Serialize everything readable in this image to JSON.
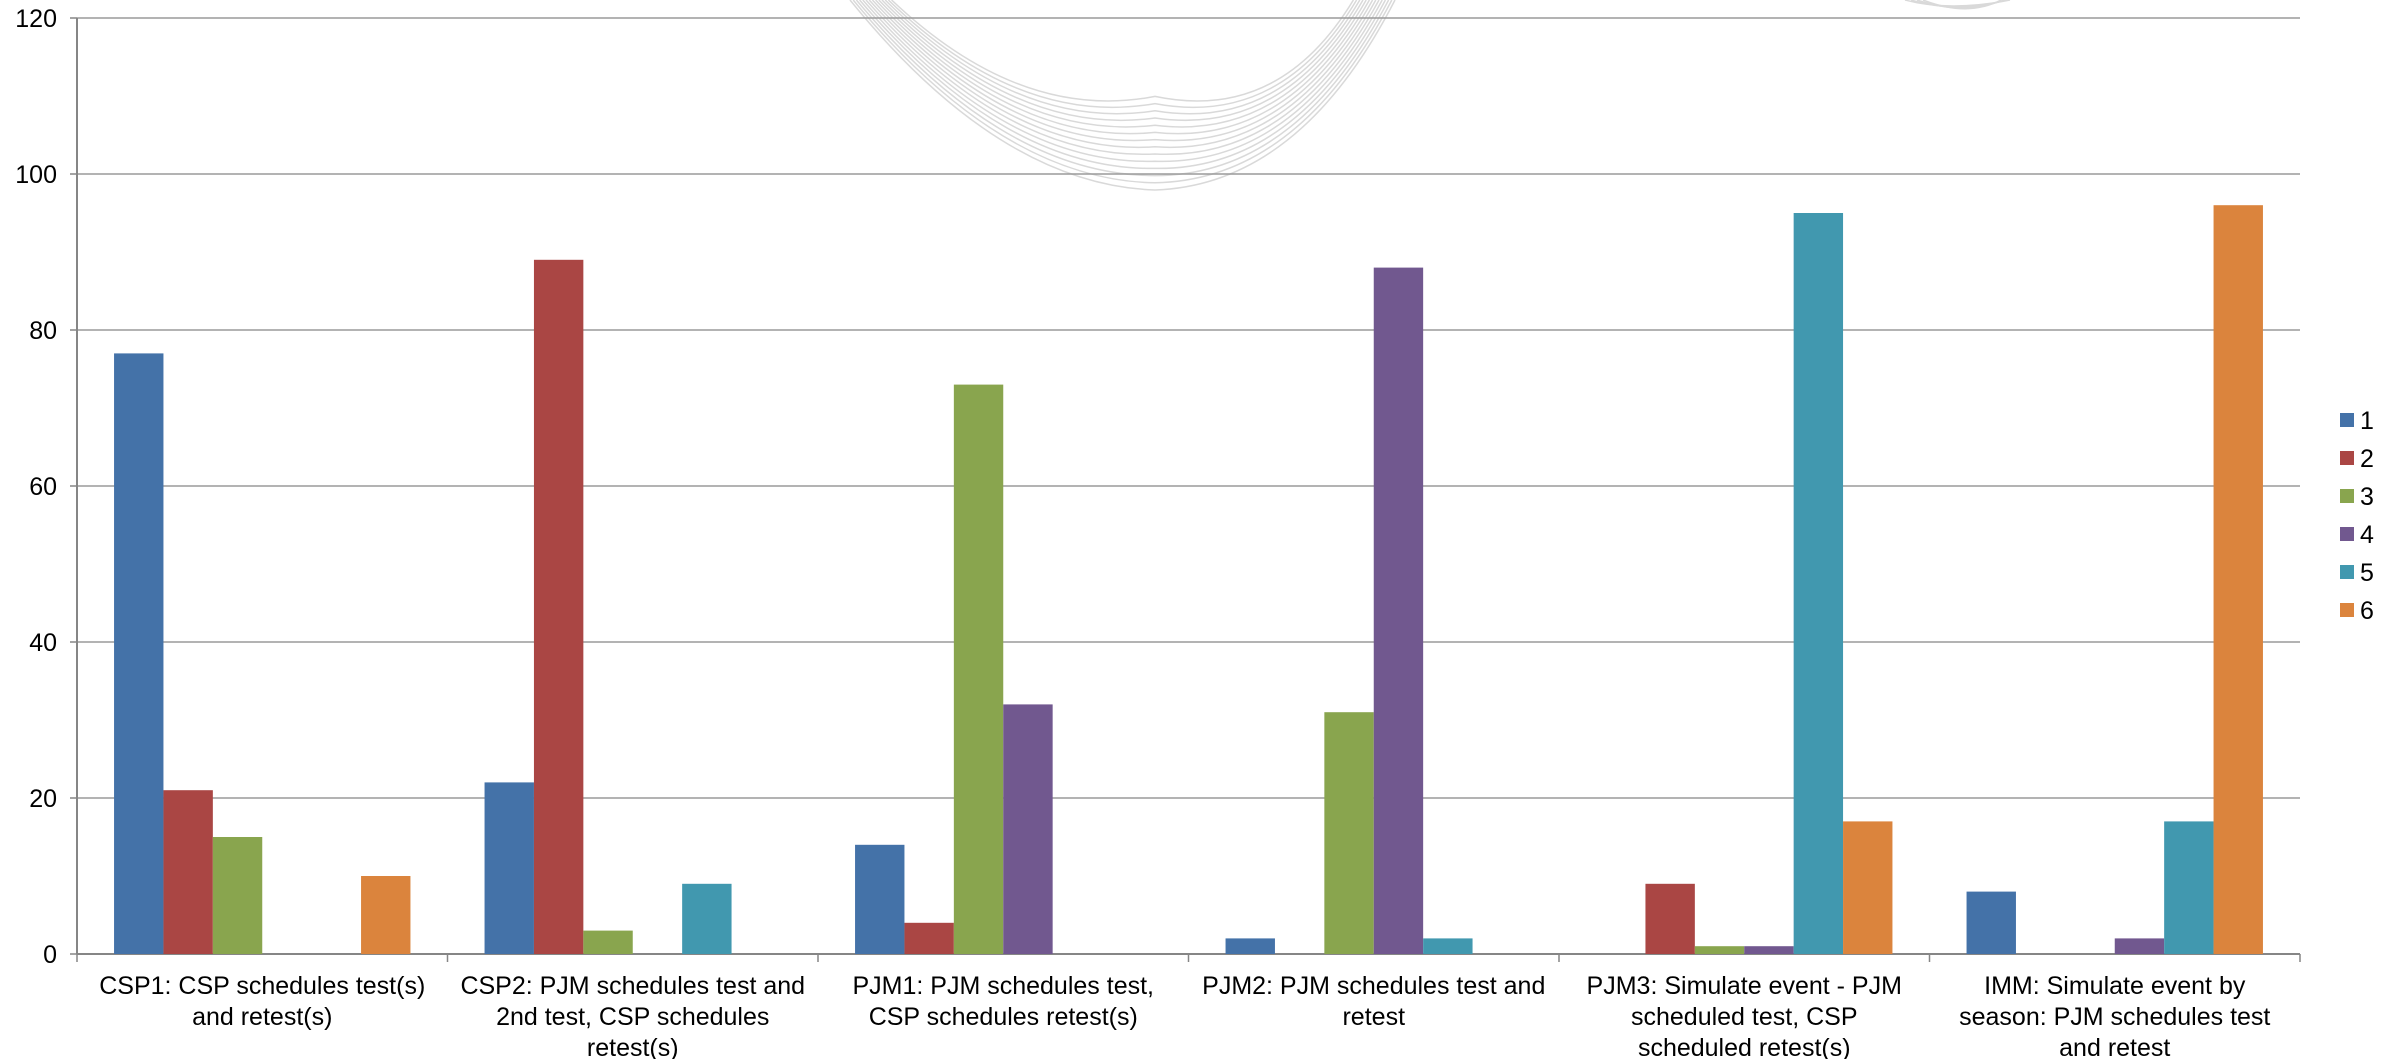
{
  "chart_data": {
    "type": "bar",
    "categories": [
      [
        "CSP1: CSP schedules test(s)",
        "and retest(s)"
      ],
      [
        "CSP2: PJM schedules test and",
        "2nd test, CSP schedules",
        "retest(s)"
      ],
      [
        "PJM1: PJM schedules test,",
        "CSP schedules retest(s)"
      ],
      [
        "PJM2: PJM schedules test and",
        "retest"
      ],
      [
        "PJM3: Simulate event - PJM",
        "scheduled test, CSP",
        "scheduled retest(s)"
      ],
      [
        "IMM: Simulate event by",
        "season: PJM schedules test",
        "and retest"
      ]
    ],
    "series": [
      {
        "name": "1",
        "color": "#4472a8",
        "values": [
          77,
          22,
          14,
          2,
          0,
          8
        ]
      },
      {
        "name": "2",
        "color": "#aa4644",
        "values": [
          21,
          89,
          4,
          0,
          9,
          0
        ]
      },
      {
        "name": "3",
        "color": "#89a54e",
        "values": [
          15,
          3,
          73,
          31,
          1,
          0
        ]
      },
      {
        "name": "4",
        "color": "#71588f",
        "values": [
          0,
          0,
          32,
          88,
          1,
          2
        ]
      },
      {
        "name": "5",
        "color": "#4198af",
        "values": [
          0,
          9,
          0,
          2,
          95,
          17
        ]
      },
      {
        "name": "6",
        "color": "#db843d",
        "values": [
          10,
          0,
          0,
          0,
          17,
          96
        ]
      }
    ],
    "ylim": [
      0,
      120
    ],
    "yticks": [
      0,
      20,
      40,
      60,
      80,
      100,
      120
    ],
    "grid": true,
    "legend_position": "right"
  }
}
